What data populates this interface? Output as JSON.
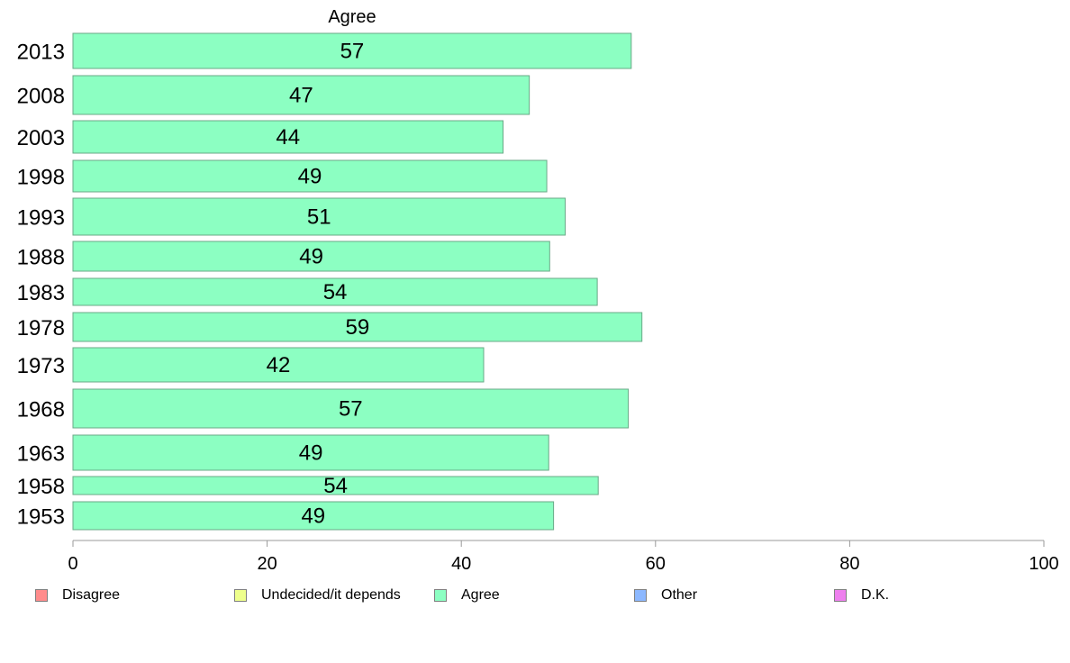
{
  "chart_data": {
    "type": "bar",
    "orientation": "horizontal",
    "title": "Agree",
    "categories": [
      "2013",
      "2008",
      "2003",
      "1998",
      "1993",
      "1988",
      "1983",
      "1978",
      "1973",
      "1968",
      "1963",
      "1958",
      "1953"
    ],
    "series": [
      {
        "name": "Agree",
        "color": "#8cffc2",
        "values": [
          57.5,
          47,
          44.3,
          48.8,
          50.7,
          49.1,
          54,
          58.6,
          42.3,
          57.2,
          49,
          54.1,
          49.5
        ],
        "labels": [
          "57",
          "47",
          "44",
          "49",
          "51",
          "49",
          "54",
          "59",
          "42",
          "57",
          "49",
          "54",
          "49"
        ]
      }
    ],
    "xlim": [
      0,
      100
    ],
    "xticks": [
      "0",
      "20",
      "40",
      "60",
      "80",
      "100"
    ],
    "grid": false,
    "legend": [
      {
        "label": "Disagree",
        "color": "#ff8c8c"
      },
      {
        "label": "Undecided/it depends",
        "color": "#eeff8c"
      },
      {
        "label": "Agree",
        "color": "#8cffc2"
      },
      {
        "label": "Other",
        "color": "#8cb8ff"
      },
      {
        "label": "D.K.",
        "color": "#ee80ee"
      }
    ],
    "legend_position": "bottom"
  }
}
